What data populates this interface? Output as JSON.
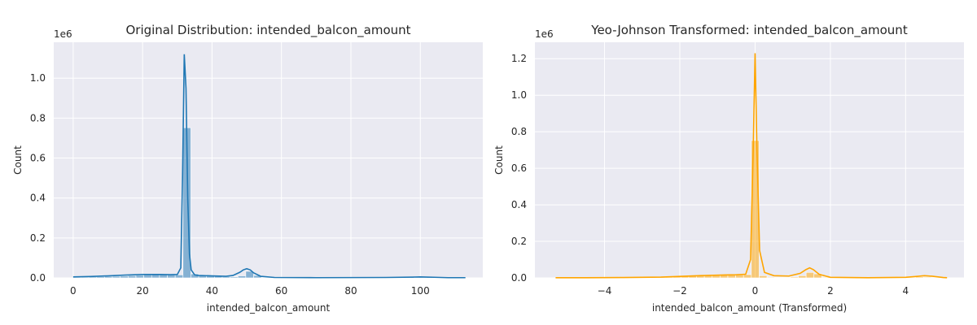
{
  "figure": {
    "background": "#ffffff"
  },
  "chart_data": [
    {
      "type": "histogram",
      "title": "Original Distribution: intended_balcon_amount",
      "xlabel": "intended_balcon_amount",
      "ylabel": "Count",
      "y_offset_label": "1e6",
      "xlim": [
        -5.6,
        118.0
      ],
      "ylim": [
        0,
        1.18
      ],
      "xticks": [
        0,
        20,
        40,
        60,
        80,
        100
      ],
      "xtick_labels": [
        "0",
        "20",
        "40",
        "60",
        "80",
        "100"
      ],
      "yticks": [
        0.0,
        0.2,
        0.4,
        0.6,
        0.8,
        1.0
      ],
      "ytick_labels": [
        "0.0",
        "0.2",
        "0.4",
        "0.6",
        "0.8",
        "1.0"
      ],
      "grid": true,
      "plot_background": "#eaeaf2",
      "color": "#1f77b4",
      "bin_edges": [
        0,
        2.26,
        4.52,
        6.78,
        9.04,
        11.3,
        13.56,
        15.82,
        18.08,
        20.34,
        22.6,
        24.86,
        27.12,
        29.38,
        31.64,
        33.9,
        36.16,
        38.42,
        40.68,
        42.94,
        45.2,
        47.46,
        49.72,
        51.98,
        54.24,
        56.5,
        58.76,
        61.02,
        63.28,
        65.54,
        67.8,
        70.06,
        72.32,
        74.58,
        76.84,
        79.1,
        81.36,
        83.62,
        85.88,
        88.14,
        90.4,
        92.66,
        94.92,
        97.18,
        99.44,
        101.7,
        103.96,
        106.22,
        108.48,
        110.74,
        113.0
      ],
      "counts": [
        0.004,
        0.004,
        0.005,
        0.006,
        0.007,
        0.008,
        0.009,
        0.011,
        0.013,
        0.015,
        0.016,
        0.016,
        0.015,
        0.015,
        0.752,
        0.02,
        0.012,
        0.01,
        0.008,
        0.006,
        0.005,
        0.01,
        0.033,
        0.012,
        0.002,
        0.001,
        0.001,
        0.001,
        0.001,
        0.001,
        0.001,
        0.001,
        0.001,
        0.001,
        0.001,
        0.001,
        0.001,
        0.001,
        0.001,
        0.001,
        0.001,
        0.002,
        0.003,
        0.004,
        0.005,
        0.004,
        0.002,
        0.001,
        0.001,
        0.001
      ],
      "kde": {
        "x": [
          0,
          5,
          10,
          15,
          20,
          25,
          28,
          30,
          31,
          31.5,
          32,
          32.5,
          33,
          33.5,
          34,
          35,
          36,
          40,
          44,
          46,
          48,
          49,
          50,
          51,
          52,
          54,
          58,
          70,
          90,
          98,
          100,
          102,
          104,
          108,
          113
        ],
        "y": [
          0.005,
          0.007,
          0.01,
          0.014,
          0.017,
          0.017,
          0.016,
          0.017,
          0.05,
          0.5,
          1.12,
          0.95,
          0.4,
          0.12,
          0.04,
          0.015,
          0.012,
          0.01,
          0.008,
          0.012,
          0.028,
          0.04,
          0.046,
          0.04,
          0.025,
          0.008,
          0.002,
          0.001,
          0.002,
          0.004,
          0.005,
          0.004,
          0.003,
          0.001,
          0.001
        ]
      }
    },
    {
      "type": "histogram",
      "title": "Yeo-Johnson Transformed: intended_balcon_amount",
      "xlabel": "intended_balcon_amount (Transformed)",
      "ylabel": "Count",
      "y_offset_label": "1e6",
      "xlim": [
        -5.85,
        5.55
      ],
      "ylim": [
        0,
        1.29
      ],
      "xticks": [
        -4,
        -2,
        0,
        2,
        4
      ],
      "xtick_labels": [
        "−4",
        "−2",
        "0",
        "2",
        "4"
      ],
      "yticks": [
        0.0,
        0.2,
        0.4,
        0.6,
        0.8,
        1.0,
        1.2
      ],
      "ytick_labels": [
        "0.0",
        "0.2",
        "0.4",
        "0.6",
        "0.8",
        "1.0",
        "1.2"
      ],
      "grid": true,
      "plot_background": "#eaeaf2",
      "color": "#ffa500",
      "bin_edges": [
        -5.3,
        -5.092,
        -4.884,
        -4.676,
        -4.468,
        -4.26,
        -4.052,
        -3.844,
        -3.636,
        -3.428,
        -3.22,
        -3.012,
        -2.804,
        -2.596,
        -2.388,
        -2.18,
        -1.972,
        -1.764,
        -1.556,
        -1.348,
        -1.14,
        -0.932,
        -0.724,
        -0.516,
        -0.308,
        -0.1,
        0.108,
        0.316,
        0.524,
        0.732,
        0.94,
        1.148,
        1.356,
        1.564,
        1.772,
        1.98,
        2.188,
        2.396,
        2.604,
        2.812,
        3.02,
        3.228,
        3.436,
        3.644,
        3.852,
        4.06,
        4.268,
        4.476,
        4.684,
        4.892,
        5.1
      ],
      "counts": [
        0.001,
        0.001,
        0.001,
        0.001,
        0.001,
        0.001,
        0.001,
        0.001,
        0.001,
        0.001,
        0.002,
        0.003,
        0.004,
        0.005,
        0.006,
        0.008,
        0.01,
        0.012,
        0.013,
        0.014,
        0.015,
        0.015,
        0.016,
        0.016,
        0.018,
        0.752,
        0.012,
        0.004,
        0.003,
        0.003,
        0.005,
        0.012,
        0.03,
        0.022,
        0.004,
        0.001,
        0.001,
        0.001,
        0.001,
        0.001,
        0.001,
        0.001,
        0.001,
        0.001,
        0.001,
        0.003,
        0.005,
        0.004,
        0.002,
        0.001
      ],
      "kde": {
        "x": [
          -5.3,
          -4.5,
          -3.5,
          -2.5,
          -2.0,
          -1.5,
          -1.0,
          -0.5,
          -0.25,
          -0.12,
          -0.05,
          0,
          0.05,
          0.12,
          0.25,
          0.5,
          0.9,
          1.2,
          1.35,
          1.45,
          1.55,
          1.7,
          2.0,
          3.0,
          4.0,
          4.3,
          4.5,
          4.7,
          5.0,
          5.1
        ],
        "y": [
          0.001,
          0.001,
          0.002,
          0.004,
          0.008,
          0.012,
          0.015,
          0.017,
          0.02,
          0.1,
          0.7,
          1.23,
          0.7,
          0.15,
          0.03,
          0.012,
          0.01,
          0.025,
          0.045,
          0.055,
          0.045,
          0.02,
          0.003,
          0.001,
          0.003,
          0.008,
          0.012,
          0.009,
          0.002,
          0.001
        ]
      }
    }
  ]
}
